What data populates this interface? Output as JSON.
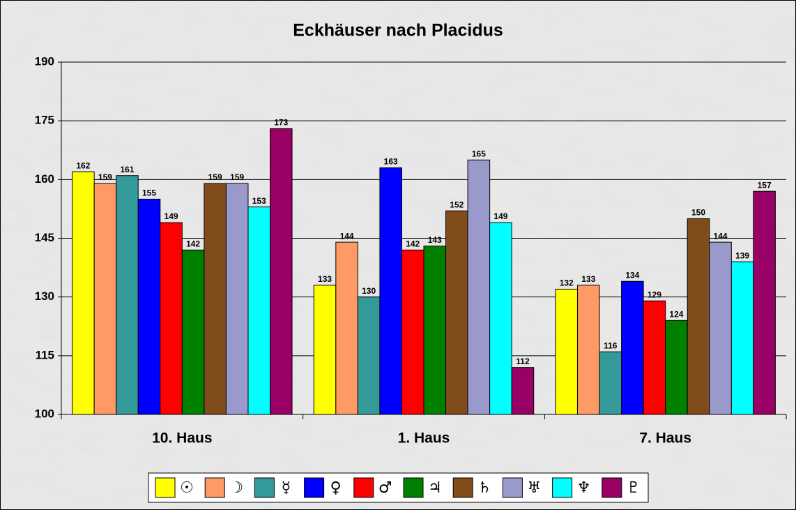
{
  "chart_data": {
    "type": "bar",
    "title": "Eckhäuser nach Placidus",
    "categories": [
      "10. Haus",
      "1. Haus",
      "7. Haus"
    ],
    "series": [
      {
        "name": "☉",
        "color": "#ffff00",
        "values": [
          162,
          133,
          132
        ]
      },
      {
        "name": "☽",
        "color": "#ff9966",
        "values": [
          159,
          144,
          133
        ]
      },
      {
        "name": "☿",
        "color": "#339999",
        "values": [
          161,
          130,
          116
        ]
      },
      {
        "name": "♀",
        "color": "#0000ff",
        "values": [
          155,
          163,
          134
        ]
      },
      {
        "name": "♂",
        "color": "#ff0000",
        "values": [
          149,
          142,
          129
        ]
      },
      {
        "name": "♃",
        "color": "#008000",
        "values": [
          142,
          143,
          124
        ]
      },
      {
        "name": "♄",
        "color": "#804c1c",
        "values": [
          159,
          152,
          150
        ]
      },
      {
        "name": "♅",
        "color": "#9999cc",
        "values": [
          159,
          165,
          144
        ]
      },
      {
        "name": "♆",
        "color": "#00ffff",
        "values": [
          153,
          149,
          139
        ]
      },
      {
        "name": "♇",
        "color": "#990066",
        "values": [
          173,
          112,
          157
        ]
      }
    ],
    "ylim": [
      100,
      190
    ],
    "yticks": [
      100,
      115,
      130,
      145,
      160,
      175,
      190
    ],
    "grid": true,
    "legend": "bottom"
  }
}
